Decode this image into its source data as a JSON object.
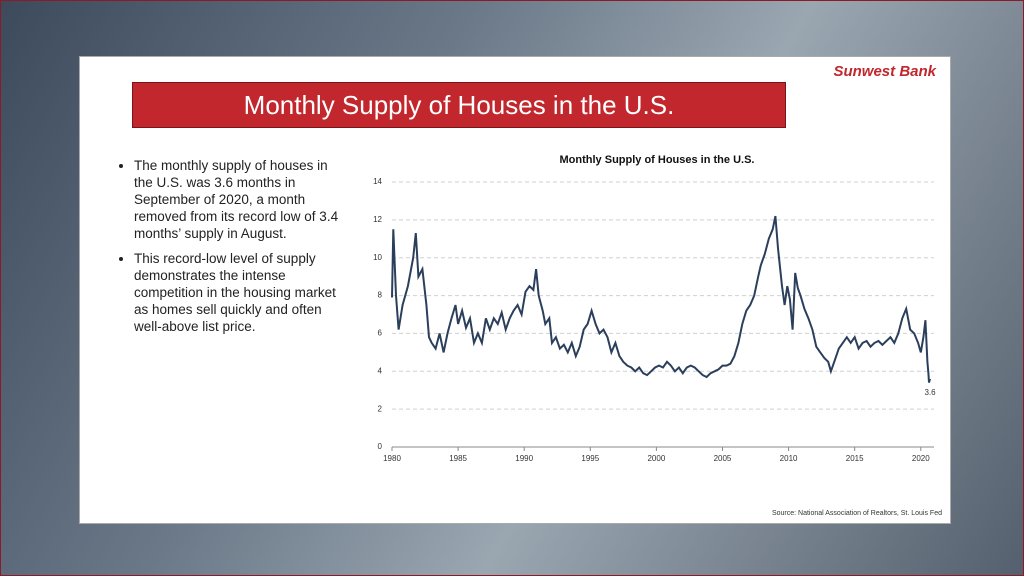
{
  "slide_title": "Monthly Supply of Houses in the U.S.",
  "logo": "Sunwest Bank",
  "bullets": [
    "The monthly supply of houses in the U.S. was 3.6 months in September of 2020, a month removed from its record low of 3.4 months’ supply in August.",
    "This record-low level of supply demonstrates the intense competition in the housing market as homes sell quickly and often well-above list price."
  ],
  "source": "Source: National Association of Realtors, St. Louis Fed",
  "chart_data": {
    "type": "line",
    "title": "Monthly Supply of Houses in the U.S.",
    "x": [
      1980,
      1980.1,
      1980.3,
      1980.5,
      1980.8,
      1981.2,
      1981.6,
      1981.8,
      1982,
      1982.3,
      1982.6,
      1982.8,
      1983,
      1983.3,
      1983.6,
      1983.9,
      1984.2,
      1984.5,
      1984.8,
      1985,
      1985.3,
      1985.6,
      1985.9,
      1986.2,
      1986.5,
      1986.8,
      1987.1,
      1987.4,
      1987.7,
      1988,
      1988.3,
      1988.6,
      1988.9,
      1989.2,
      1989.5,
      1989.8,
      1990.1,
      1990.4,
      1990.7,
      1990.9,
      1991.1,
      1991.4,
      1991.6,
      1991.9,
      1992.1,
      1992.4,
      1992.7,
      1993,
      1993.3,
      1993.6,
      1993.9,
      1994.2,
      1994.5,
      1994.8,
      1995.1,
      1995.4,
      1995.7,
      1996,
      1996.3,
      1996.6,
      1996.9,
      1997.2,
      1997.5,
      1997.8,
      1998.1,
      1998.4,
      1998.7,
      1999,
      1999.3,
      1999.6,
      1999.9,
      2000.2,
      2000.5,
      2000.8,
      2001.1,
      2001.4,
      2001.7,
      2002,
      2002.3,
      2002.6,
      2002.9,
      2003.2,
      2003.5,
      2003.8,
      2004.1,
      2004.4,
      2004.7,
      2005,
      2005.3,
      2005.6,
      2005.9,
      2006.2,
      2006.5,
      2006.8,
      2007.1,
      2007.4,
      2007.7,
      2007.9,
      2008.2,
      2008.5,
      2008.8,
      2009,
      2009.2,
      2009.5,
      2009.7,
      2009.9,
      2010.1,
      2010.3,
      2010.5,
      2010.7,
      2010.9,
      2011.2,
      2011.5,
      2011.8,
      2012.1,
      2012.4,
      2012.7,
      2013,
      2013.2,
      2013.5,
      2013.8,
      2014.1,
      2014.4,
      2014.7,
      2015,
      2015.3,
      2015.6,
      2015.9,
      2016.2,
      2016.5,
      2016.8,
      2017.1,
      2017.4,
      2017.7,
      2018,
      2018.3,
      2018.6,
      2018.9,
      2019.2,
      2019.5,
      2019.8,
      2020,
      2020.2,
      2020.35,
      2020.5,
      2020.58,
      2020.62,
      2020.7
    ],
    "series": [
      {
        "name": "Monthly supply",
        "color": "#2b3f5c",
        "values": [
          7.9,
          11.5,
          8,
          6.2,
          7.5,
          8.5,
          10,
          11.3,
          9,
          9.4,
          7.5,
          5.8,
          5.5,
          5.2,
          6,
          5,
          6,
          6.8,
          7.5,
          6.5,
          7.2,
          6.3,
          6.8,
          5.5,
          6,
          5.5,
          6.8,
          6.2,
          6.8,
          6.5,
          7.1,
          6.2,
          6.8,
          7.2,
          7.5,
          7,
          8.2,
          8.5,
          8.3,
          9.4,
          8,
          7.2,
          6.5,
          6.8,
          5.5,
          5.8,
          5.2,
          5.4,
          5,
          5.5,
          4.8,
          5.3,
          6.2,
          6.5,
          7.2,
          6.5,
          6,
          6.2,
          5.8,
          5,
          5.5,
          4.8,
          4.5,
          4.3,
          4.2,
          4,
          4.2,
          3.9,
          3.8,
          4,
          4.2,
          4.3,
          4.2,
          4.5,
          4.3,
          4,
          4.2,
          3.9,
          4.2,
          4.3,
          4.2,
          4,
          3.8,
          3.7,
          3.9,
          4,
          4.1,
          4.3,
          4.3,
          4.4,
          4.8,
          5.5,
          6.5,
          7.2,
          7.5,
          8,
          9,
          9.6,
          10.2,
          11,
          11.5,
          12.2,
          10.5,
          8.5,
          7.5,
          8.5,
          7.8,
          6.2,
          9.2,
          8.4,
          8,
          7.3,
          6.8,
          6.2,
          5.3,
          5,
          4.7,
          4.5,
          4,
          4.6,
          5.2,
          5.5,
          5.8,
          5.5,
          5.8,
          5.2,
          5.5,
          5.6,
          5.3,
          5.5,
          5.6,
          5.4,
          5.6,
          5.8,
          5.5,
          6,
          6.8,
          7.3,
          6.2,
          6,
          5.5,
          5,
          5.8,
          6.7,
          4.5,
          3.9,
          3.4,
          3.6
        ]
      }
    ],
    "xlim": [
      1980,
      2021
    ],
    "xticks": [
      1980,
      1985,
      1990,
      1995,
      2000,
      2005,
      2010,
      2015,
      2020
    ],
    "ylim": [
      0,
      14
    ],
    "yticks": [
      0,
      2,
      4,
      6,
      8,
      10,
      12,
      14
    ],
    "grid": true
  }
}
